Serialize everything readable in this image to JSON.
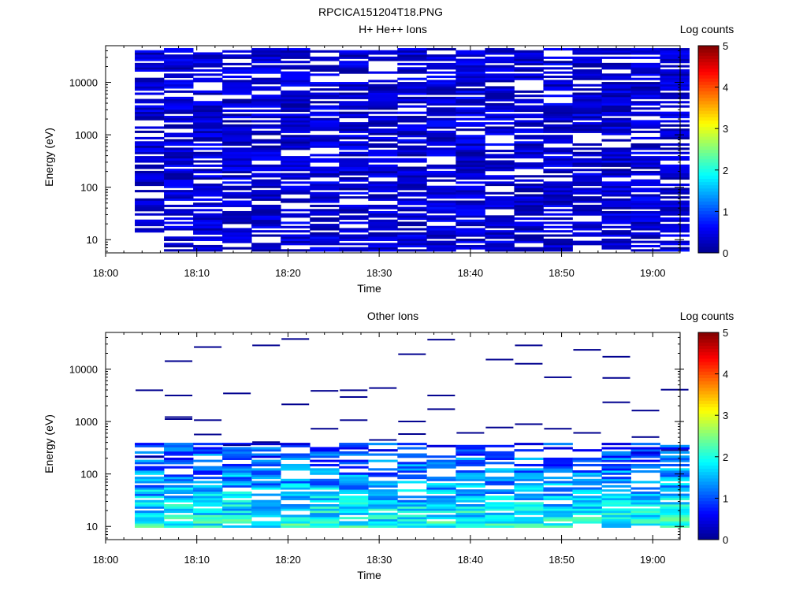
{
  "figure": {
    "title": "RPCICA151204T18.PNG"
  },
  "colors": {
    "colormap": [
      "#00008f",
      "#0000ff",
      "#0080ff",
      "#00ffff",
      "#80ff80",
      "#ffff00",
      "#ff8000",
      "#ff0000",
      "#800000"
    ],
    "background": "#ffffff",
    "axis": "#000000"
  },
  "chart_data": [
    {
      "type": "heatmap",
      "title": "H+ He++ Ions",
      "xlabel": "Time",
      "ylabel": "Energy (eV)",
      "x_ticks": [
        "18:00",
        "18:10",
        "18:20",
        "18:30",
        "18:40",
        "18:50",
        "19:00"
      ],
      "y_ticks": [
        "10",
        "100",
        "1000",
        "10000"
      ],
      "y_scale": "log",
      "ylim": [
        5.6,
        50000
      ],
      "xlim_minutes": [
        0,
        63
      ],
      "colorbar": {
        "label": "Log counts",
        "ticks": [
          "0",
          "1",
          "2",
          "3",
          "4",
          "5"
        ],
        "range": [
          0,
          5
        ]
      },
      "time_bins_minutes": [
        3.2,
        6.4,
        9.6,
        12.8,
        16.0,
        19.2,
        22.4,
        25.6,
        28.8,
        32.0,
        35.2,
        38.4,
        41.6,
        44.8,
        48.0,
        51.2,
        54.4,
        57.6,
        60.8
      ],
      "energy_range_ev": [
        6,
        45000
      ],
      "energy_bins": 96,
      "counts_level": {
        "typical_log_counts": [
          0.0,
          0.6
        ],
        "max_log_counts": 0.8
      },
      "empty_regions": [
        {
          "time_minutes": [
            0,
            3.2
          ],
          "energy_ev": [
            6,
            45000
          ]
        },
        {
          "time_minutes": [
            3.2,
            6.4
          ],
          "energy_ev": [
            6,
            15
          ]
        }
      ],
      "seed": 17
    },
    {
      "type": "heatmap",
      "title": "Other Ions",
      "xlabel": "Time",
      "ylabel": "Energy (eV)",
      "x_ticks": [
        "18:00",
        "18:10",
        "18:20",
        "18:30",
        "18:40",
        "18:50",
        "19:00"
      ],
      "y_ticks": [
        "10",
        "100",
        "1000",
        "10000"
      ],
      "y_scale": "log",
      "ylim": [
        5.6,
        50000
      ],
      "xlim_minutes": [
        0,
        63
      ],
      "colorbar": {
        "label": "Log counts",
        "ticks": [
          "0",
          "1",
          "2",
          "3",
          "4",
          "5"
        ],
        "range": [
          0,
          5
        ]
      },
      "time_bins_minutes": [
        3.2,
        6.4,
        9.6,
        12.8,
        16.0,
        19.2,
        22.4,
        25.6,
        28.8,
        32.0,
        35.2,
        38.4,
        41.6,
        44.8,
        48.0,
        51.2,
        54.4,
        57.6,
        60.8
      ],
      "dense_band_ev": [
        9,
        400
      ],
      "dense_band_log_counts": [
        0.8,
        2.0
      ],
      "sparse_lines_ev": [
        [
          3900,
          210
        ],
        [
          14000,
          3100,
          1200,
          1100
        ],
        [
          26000,
          1050,
          560
        ],
        [
          3400,
          350
        ],
        [
          28000,
          400
        ],
        [
          37000,
          2100
        ],
        [
          3800,
          720
        ],
        [
          1050,
          3900,
          2900
        ],
        [
          4300,
          440
        ],
        [
          19000,
          990,
          570
        ],
        [
          36000,
          3100,
          1700
        ],
        [
          600
        ],
        [
          15000,
          760
        ],
        [
          28000,
          12500,
          880
        ],
        [
          6900,
          720
        ],
        [
          23000,
          600
        ],
        [
          17000,
          6700,
          2300
        ],
        [
          1600,
          500
        ],
        [
          4000,
          280
        ]
      ],
      "seed": 29
    }
  ]
}
